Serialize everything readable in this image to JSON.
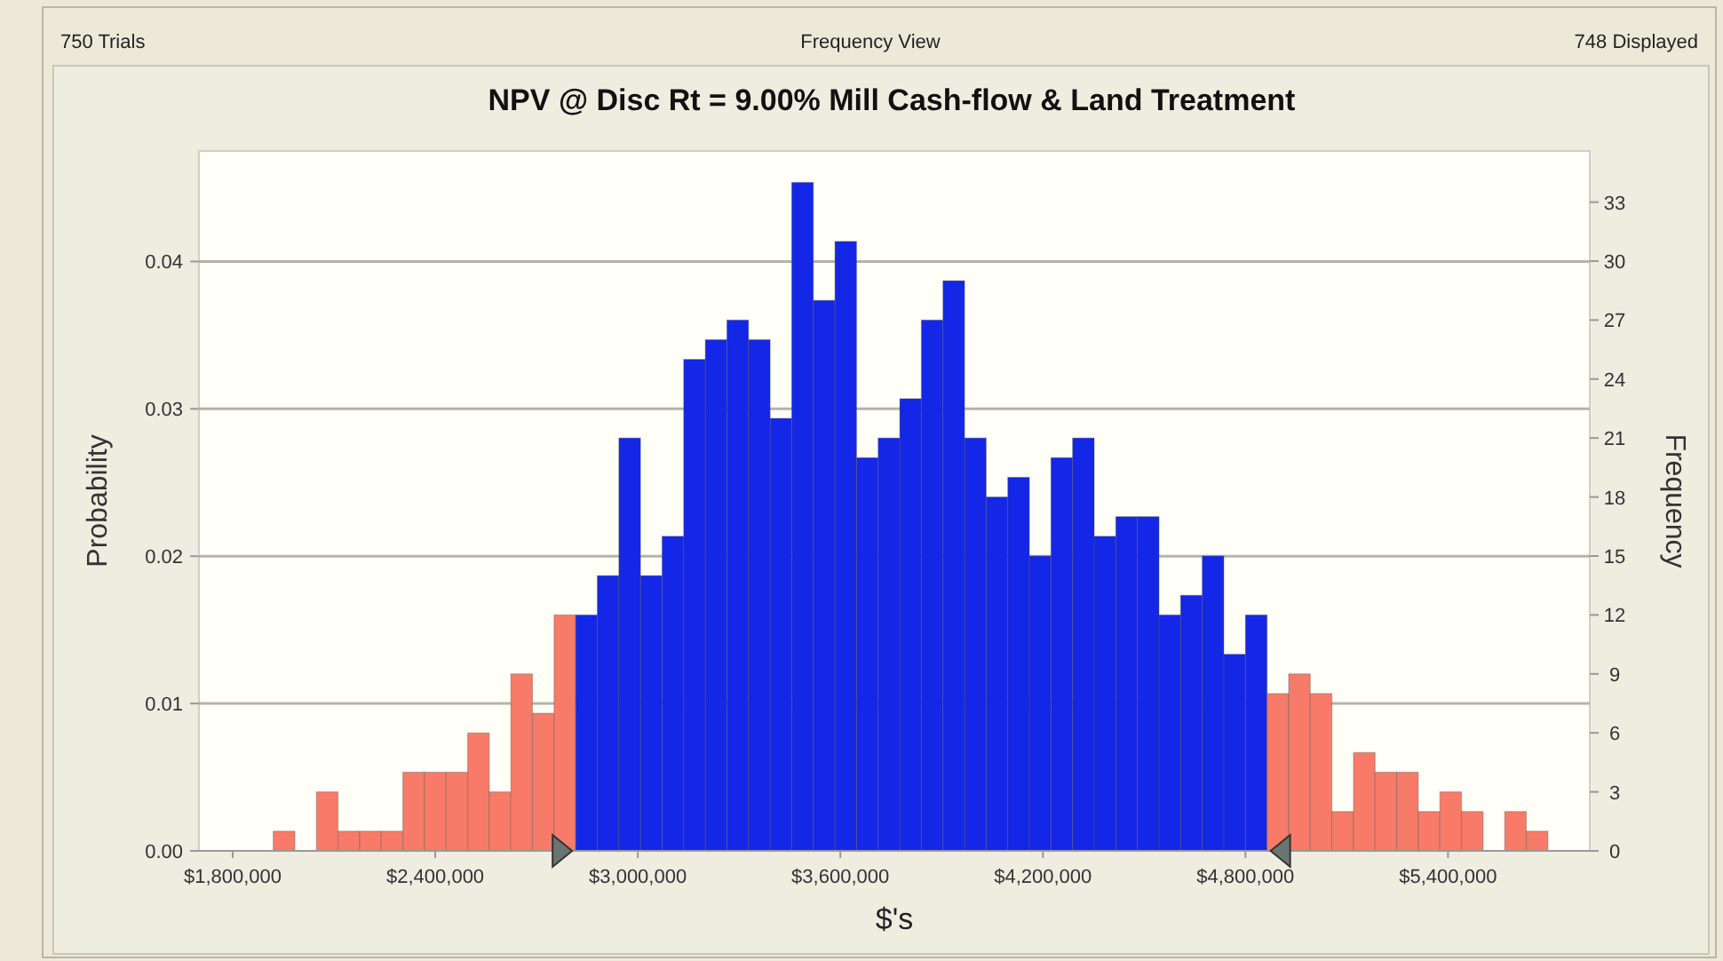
{
  "chart_data": {
    "type": "histogram",
    "title": "NPV @ Disc Rt = 9.00% Mill Cash-flow & Land Treatment",
    "xlabel": "$'s",
    "ylabel": "Probability",
    "y2label": "Frequency",
    "annotations": [
      "750 Trials",
      "Frequency View",
      "748 Displayed"
    ],
    "bins": [
      1920000,
      1984000,
      2048000,
      2112000,
      2176000,
      2240000,
      2304000,
      2368000,
      2432000,
      2496000,
      2560000,
      2624000,
      2688000,
      2752000,
      2816000,
      2880000,
      2944000,
      3008000,
      3072000,
      3136000,
      3200000,
      3264000,
      3328000,
      3392000,
      3456000,
      3520000,
      3584000,
      3648000,
      3712000,
      3776000,
      3840000,
      3904000,
      3968000,
      4032000,
      4096000,
      4160000,
      4224000,
      4288000,
      4352000,
      4416000,
      4480000,
      4544000,
      4608000,
      4672000,
      4736000,
      4800000,
      4864000,
      4928000,
      4992000,
      5056000,
      5120000,
      5184000,
      5248000,
      5312000,
      5376000,
      5440000,
      5504000,
      5568000,
      5632000,
      5696000
    ],
    "series": [
      {
        "axis": "y2",
        "values": [
          1,
          0,
          3,
          1,
          1,
          1,
          4,
          4,
          4,
          6,
          3,
          9,
          7,
          12,
          12,
          14,
          21,
          14,
          16,
          25,
          26,
          27,
          26,
          22,
          34,
          28,
          31,
          20,
          21,
          23,
          27,
          29,
          21,
          18,
          19,
          15,
          20,
          21,
          16,
          17,
          17,
          12,
          13,
          15,
          10,
          12,
          8,
          9,
          8,
          2,
          5,
          4,
          4,
          2,
          3,
          2,
          0,
          2,
          1
        ],
        "colors": [
          "#f77b68",
          "#f77b68",
          "#f77b68",
          "#f77b68",
          "#f77b68",
          "#f77b68",
          "#f77b68",
          "#f77b68",
          "#f77b68",
          "#f77b68",
          "#f77b68",
          "#f77b68",
          "#f77b68",
          "#f77b68",
          "#1426e6",
          "#1426e6",
          "#1426e6",
          "#1426e6",
          "#1426e6",
          "#1426e6",
          "#1426e6",
          "#1426e6",
          "#1426e6",
          "#1426e6",
          "#1426e6",
          "#1426e6",
          "#1426e6",
          "#1426e6",
          "#1426e6",
          "#1426e6",
          "#1426e6",
          "#1426e6",
          "#1426e6",
          "#1426e6",
          "#1426e6",
          "#1426e6",
          "#1426e6",
          "#1426e6",
          "#1426e6",
          "#1426e6",
          "#1426e6",
          "#1426e6",
          "#1426e6",
          "#1426e6",
          "#1426e6",
          "#1426e6",
          "#f77b68",
          "#f77b68",
          "#f77b68",
          "#f77b68",
          "#f77b68",
          "#f77b68",
          "#f77b68",
          "#f77b68",
          "#f77b68",
          "#f77b68",
          "#f77b68",
          "#f77b68",
          "#f77b68"
        ]
      }
    ],
    "xlim": [
      1700000,
      5820000
    ],
    "xticks": [
      {
        "value": 1800000,
        "label": "$1,800,000"
      },
      {
        "value": 2400000,
        "label": "$2,400,000"
      },
      {
        "value": 3000000,
        "label": "$3,000,000"
      },
      {
        "value": 3600000,
        "label": "$3,600,000"
      },
      {
        "value": 4200000,
        "label": "$4,200,000"
      },
      {
        "value": 4800000,
        "label": "$4,800,000"
      },
      {
        "value": 5400000,
        "label": "$5,400,000"
      }
    ],
    "ylim": [
      0,
      0.0475
    ],
    "yticks": [
      {
        "value": 0,
        "label": "0.00"
      },
      {
        "value": 0.01,
        "label": "0.01"
      },
      {
        "value": 0.02,
        "label": "0.02"
      },
      {
        "value": 0.03,
        "label": "0.03"
      },
      {
        "value": 0.04,
        "label": "0.04"
      }
    ],
    "y2lim": [
      0,
      35.6
    ],
    "y2ticks": [
      0,
      3,
      6,
      9,
      12,
      15,
      18,
      21,
      24,
      27,
      30,
      33
    ],
    "grid": "y"
  }
}
